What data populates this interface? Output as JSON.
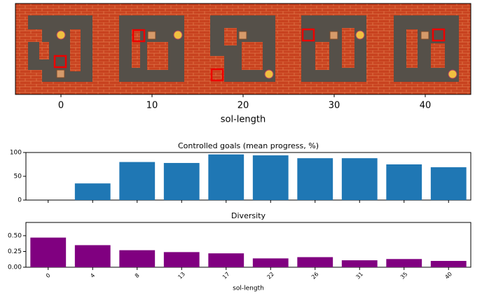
{
  "chart_data": [
    {
      "type": "image",
      "xlabel": "sol-length",
      "xlim": [
        -5,
        45
      ],
      "xticks": [
        0,
        10,
        20,
        30,
        40
      ]
    },
    {
      "type": "bar",
      "title": "Controlled goals (mean progress, %)",
      "categories": [
        "0",
        "4",
        "8",
        "13",
        "17",
        "22",
        "26",
        "31",
        "35",
        "40"
      ],
      "values": [
        0,
        35,
        80,
        78,
        96,
        94,
        88,
        88,
        75,
        69
      ],
      "color": "#1f77b4",
      "ylim": [
        0,
        100
      ],
      "yticks": [
        0,
        50,
        100
      ]
    },
    {
      "type": "bar",
      "title": "Diversity",
      "xlabel": "sol-length",
      "categories": [
        "0",
        "4",
        "8",
        "13",
        "17",
        "22",
        "26",
        "31",
        "35",
        "40"
      ],
      "values": [
        0.47,
        0.35,
        0.27,
        0.24,
        0.22,
        0.14,
        0.16,
        0.11,
        0.13,
        0.1
      ],
      "color": "#800080",
      "ylim": [
        0,
        0.71
      ],
      "yticks": [
        {
          "value": 0,
          "label": "0.00"
        },
        {
          "value": 0.25,
          "label": "0.25"
        },
        {
          "value": 0.5,
          "label": "0.50"
        }
      ]
    }
  ]
}
